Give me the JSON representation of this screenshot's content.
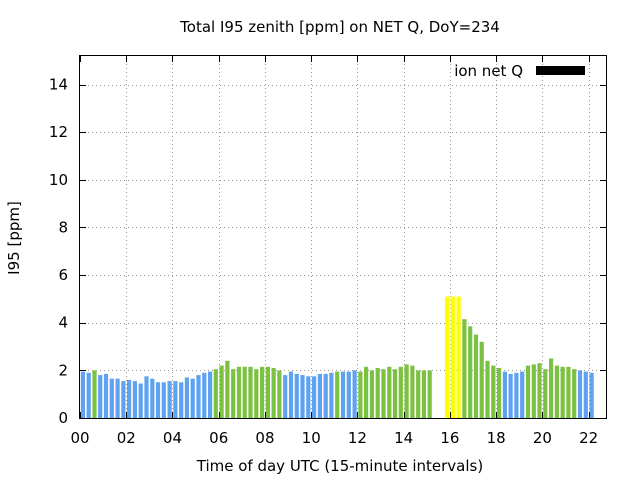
{
  "chart_data": {
    "type": "bar",
    "title": "Total I95 zenith [ppm] on NET Q, DoY=234",
    "xlabel": "Time of day UTC (15-minute intervals)",
    "ylabel": "I95 [ppm]",
    "xlim": [
      0,
      22.75
    ],
    "ylim": [
      0,
      15.2
    ],
    "xticks": [
      0,
      2,
      4,
      6,
      8,
      10,
      12,
      14,
      16,
      18,
      20,
      22
    ],
    "xtick_labels": [
      "00",
      "02",
      "04",
      "06",
      "08",
      "10",
      "12",
      "14",
      "16",
      "18",
      "20",
      "22"
    ],
    "yticks": [
      0,
      2,
      4,
      6,
      8,
      10,
      12,
      14
    ],
    "ytick_labels": [
      "0",
      "2",
      "4",
      "6",
      "8",
      "10",
      "12",
      "14"
    ],
    "grid": true,
    "legend": {
      "position": "top-right",
      "entries": [
        {
          "label": "ion net Q",
          "color": "#000000"
        }
      ]
    },
    "colors": {
      "low": "#5fa2f0",
      "medium": "#7cc242",
      "high": "#ffff00"
    },
    "bar_width_hours": 0.25,
    "bars": [
      {
        "x": 0.0,
        "y": 1.95,
        "level": "low"
      },
      {
        "x": 0.25,
        "y": 1.9,
        "level": "low"
      },
      {
        "x": 0.5,
        "y": 2.0,
        "level": "medium"
      },
      {
        "x": 0.75,
        "y": 1.8,
        "level": "low"
      },
      {
        "x": 1.0,
        "y": 1.85,
        "level": "low"
      },
      {
        "x": 1.25,
        "y": 1.65,
        "level": "low"
      },
      {
        "x": 1.5,
        "y": 1.65,
        "level": "low"
      },
      {
        "x": 1.75,
        "y": 1.55,
        "level": "low"
      },
      {
        "x": 2.0,
        "y": 1.6,
        "level": "low"
      },
      {
        "x": 2.25,
        "y": 1.55,
        "level": "low"
      },
      {
        "x": 2.5,
        "y": 1.45,
        "level": "low"
      },
      {
        "x": 2.75,
        "y": 1.75,
        "level": "low"
      },
      {
        "x": 3.0,
        "y": 1.65,
        "level": "low"
      },
      {
        "x": 3.25,
        "y": 1.5,
        "level": "low"
      },
      {
        "x": 3.5,
        "y": 1.5,
        "level": "low"
      },
      {
        "x": 3.75,
        "y": 1.55,
        "level": "low"
      },
      {
        "x": 4.0,
        "y": 1.55,
        "level": "low"
      },
      {
        "x": 4.25,
        "y": 1.5,
        "level": "low"
      },
      {
        "x": 4.5,
        "y": 1.7,
        "level": "low"
      },
      {
        "x": 4.75,
        "y": 1.65,
        "level": "low"
      },
      {
        "x": 5.0,
        "y": 1.8,
        "level": "low"
      },
      {
        "x": 5.25,
        "y": 1.9,
        "level": "low"
      },
      {
        "x": 5.5,
        "y": 1.95,
        "level": "low"
      },
      {
        "x": 5.75,
        "y": 2.05,
        "level": "medium"
      },
      {
        "x": 6.0,
        "y": 2.2,
        "level": "medium"
      },
      {
        "x": 6.25,
        "y": 2.4,
        "level": "medium"
      },
      {
        "x": 6.5,
        "y": 2.05,
        "level": "medium"
      },
      {
        "x": 6.75,
        "y": 2.15,
        "level": "medium"
      },
      {
        "x": 7.0,
        "y": 2.15,
        "level": "medium"
      },
      {
        "x": 7.25,
        "y": 2.15,
        "level": "medium"
      },
      {
        "x": 7.5,
        "y": 2.05,
        "level": "medium"
      },
      {
        "x": 7.75,
        "y": 2.15,
        "level": "medium"
      },
      {
        "x": 8.0,
        "y": 2.15,
        "level": "medium"
      },
      {
        "x": 8.25,
        "y": 2.1,
        "level": "medium"
      },
      {
        "x": 8.5,
        "y": 2.0,
        "level": "medium"
      },
      {
        "x": 8.75,
        "y": 1.8,
        "level": "low"
      },
      {
        "x": 9.0,
        "y": 1.95,
        "level": "low"
      },
      {
        "x": 9.25,
        "y": 1.85,
        "level": "low"
      },
      {
        "x": 9.5,
        "y": 1.8,
        "level": "low"
      },
      {
        "x": 9.75,
        "y": 1.75,
        "level": "low"
      },
      {
        "x": 10.0,
        "y": 1.75,
        "level": "low"
      },
      {
        "x": 10.25,
        "y": 1.85,
        "level": "low"
      },
      {
        "x": 10.5,
        "y": 1.85,
        "level": "low"
      },
      {
        "x": 10.75,
        "y": 1.9,
        "level": "low"
      },
      {
        "x": 11.0,
        "y": 1.95,
        "level": "medium"
      },
      {
        "x": 11.25,
        "y": 1.95,
        "level": "low"
      },
      {
        "x": 11.5,
        "y": 1.95,
        "level": "low"
      },
      {
        "x": 11.75,
        "y": 2.0,
        "level": "low"
      },
      {
        "x": 12.0,
        "y": 1.95,
        "level": "medium"
      },
      {
        "x": 12.25,
        "y": 2.15,
        "level": "medium"
      },
      {
        "x": 12.5,
        "y": 2.0,
        "level": "medium"
      },
      {
        "x": 12.75,
        "y": 2.1,
        "level": "medium"
      },
      {
        "x": 13.0,
        "y": 2.05,
        "level": "medium"
      },
      {
        "x": 13.25,
        "y": 2.15,
        "level": "medium"
      },
      {
        "x": 13.5,
        "y": 2.05,
        "level": "medium"
      },
      {
        "x": 13.75,
        "y": 2.15,
        "level": "medium"
      },
      {
        "x": 14.0,
        "y": 2.25,
        "level": "medium"
      },
      {
        "x": 14.25,
        "y": 2.2,
        "level": "medium"
      },
      {
        "x": 14.5,
        "y": 2.0,
        "level": "medium"
      },
      {
        "x": 14.75,
        "y": 2.0,
        "level": "medium"
      },
      {
        "x": 15.0,
        "y": 2.0,
        "level": "medium"
      },
      {
        "x": 15.75,
        "y": 5.1,
        "level": "high"
      },
      {
        "x": 16.0,
        "y": 5.1,
        "level": "high"
      },
      {
        "x": 16.25,
        "y": 5.1,
        "level": "high"
      },
      {
        "x": 16.5,
        "y": 4.15,
        "level": "medium"
      },
      {
        "x": 16.75,
        "y": 3.85,
        "level": "medium"
      },
      {
        "x": 17.0,
        "y": 3.5,
        "level": "medium"
      },
      {
        "x": 17.25,
        "y": 3.2,
        "level": "medium"
      },
      {
        "x": 17.5,
        "y": 2.4,
        "level": "medium"
      },
      {
        "x": 17.75,
        "y": 2.2,
        "level": "medium"
      },
      {
        "x": 18.0,
        "y": 2.1,
        "level": "medium"
      },
      {
        "x": 18.25,
        "y": 1.95,
        "level": "low"
      },
      {
        "x": 18.5,
        "y": 1.85,
        "level": "low"
      },
      {
        "x": 18.75,
        "y": 1.9,
        "level": "low"
      },
      {
        "x": 19.0,
        "y": 1.95,
        "level": "low"
      },
      {
        "x": 19.25,
        "y": 2.2,
        "level": "medium"
      },
      {
        "x": 19.5,
        "y": 2.25,
        "level": "medium"
      },
      {
        "x": 19.75,
        "y": 2.3,
        "level": "medium"
      },
      {
        "x": 20.0,
        "y": 2.05,
        "level": "medium"
      },
      {
        "x": 20.25,
        "y": 2.5,
        "level": "medium"
      },
      {
        "x": 20.5,
        "y": 2.2,
        "level": "medium"
      },
      {
        "x": 20.75,
        "y": 2.15,
        "level": "medium"
      },
      {
        "x": 21.0,
        "y": 2.15,
        "level": "medium"
      },
      {
        "x": 21.25,
        "y": 2.05,
        "level": "medium"
      },
      {
        "x": 21.5,
        "y": 2.0,
        "level": "low"
      },
      {
        "x": 21.75,
        "y": 1.95,
        "level": "low"
      },
      {
        "x": 22.0,
        "y": 1.9,
        "level": "low"
      }
    ]
  }
}
